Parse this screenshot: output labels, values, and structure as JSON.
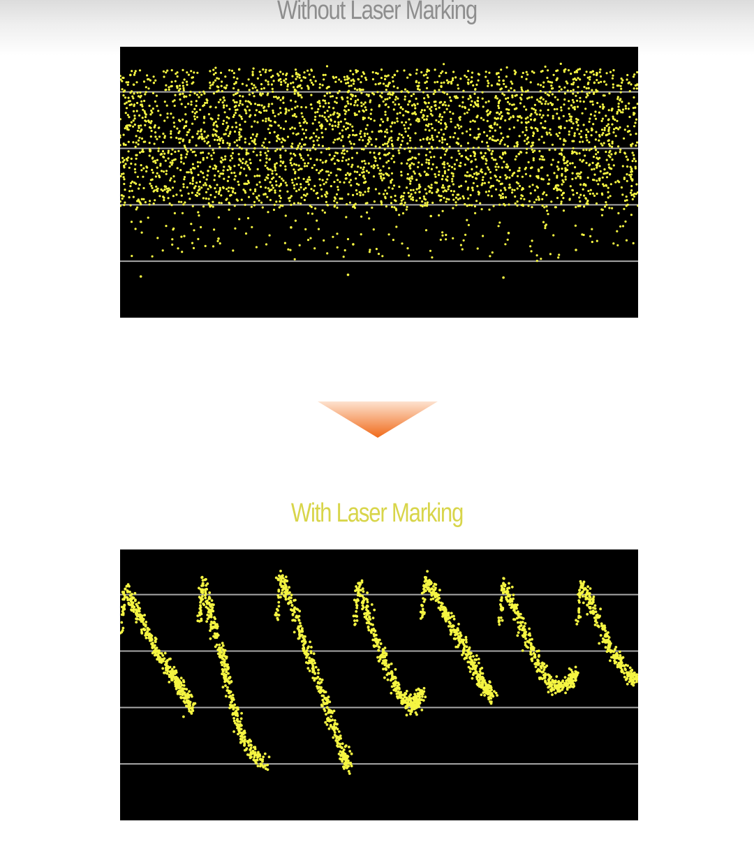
{
  "titles": {
    "top": "Without Laser Marking",
    "bottom": "With Laser Marking"
  },
  "colors": {
    "top_title": "#8e8e8e",
    "bottom_title": "#d8d54a",
    "panel_background": "#000000",
    "points": "#f5f542",
    "gridline": "#a9a9a9",
    "arrow_top": "#fde2cf",
    "arrow_bottom": "#f06a1a"
  },
  "icons": {
    "arrow": "down-triangle-icon"
  },
  "chart_data": [
    {
      "type": "scatter",
      "title": "Without Laser Marking",
      "xlabel": "",
      "ylabel": "",
      "grid": true,
      "gridlines_y": [
        1,
        2,
        3,
        4
      ],
      "xlim": [
        0,
        100
      ],
      "ylim": [
        0,
        4.8
      ],
      "distribution": "dense scattered points spread uniformly across the full width, concentrated between y=1.9 and y=4.4 with sparse outliers down to y=0.7",
      "series": [
        {
          "values": [
            [
              2,
              4.3
            ],
            [
              5,
              3.6
            ],
            [
              8,
              2.9
            ],
            [
              11,
              4.1
            ],
            [
              14,
              3.2
            ],
            [
              17,
              2.6
            ],
            [
              20,
              3.9
            ],
            [
              23,
              4.4
            ],
            [
              26,
              3.0
            ],
            [
              29,
              2.4
            ],
            [
              32,
              3.7
            ],
            [
              35,
              4.2
            ],
            [
              38,
              2.8
            ],
            [
              41,
              3.4
            ],
            [
              44,
              4.0
            ],
            [
              47,
              2.5
            ],
            [
              50,
              3.3
            ],
            [
              53,
              4.3
            ],
            [
              56,
              2.7
            ],
            [
              59,
              3.8
            ],
            [
              62,
              4.1
            ],
            [
              65,
              3.1
            ],
            [
              68,
              2.3
            ],
            [
              71,
              3.6
            ],
            [
              74,
              4.2
            ],
            [
              77,
              2.9
            ],
            [
              80,
              3.5
            ],
            [
              83,
              4.0
            ],
            [
              86,
              2.6
            ],
            [
              89,
              3.2
            ],
            [
              92,
              4.3
            ],
            [
              95,
              3.7
            ],
            [
              98,
              2.8
            ],
            [
              4,
              1.7
            ],
            [
              19,
              1.4
            ],
            [
              33,
              1.6
            ],
            [
              45,
              1.3
            ],
            [
              60,
              1.8
            ],
            [
              75,
              1.5
            ],
            [
              88,
              1.2
            ],
            [
              4,
              0.73
            ],
            [
              44,
              0.76
            ],
            [
              74,
              0.71
            ]
          ]
        }
      ]
    },
    {
      "type": "scatter",
      "title": "With Laser Marking",
      "xlabel": "",
      "ylabel": "",
      "grid": true,
      "gridlines_y": [
        1,
        2,
        3,
        4
      ],
      "xlim": [
        0,
        100
      ],
      "ylim": [
        0,
        4.8
      ],
      "distribution": "points form seven repeating sawtooth segments: a sharp peak near y=4.2 followed by a downward sweep",
      "series": [
        {
          "values": [
            [
              1,
              4.1
            ],
            [
              4,
              3.6
            ],
            [
              7,
              3.0
            ],
            [
              10,
              2.6
            ],
            [
              12,
              2.3
            ],
            [
              14,
              2.0
            ],
            [
              16,
              4.2
            ],
            [
              18,
              3.5
            ],
            [
              20,
              2.8
            ],
            [
              22,
              2.0
            ],
            [
              24,
              1.4
            ],
            [
              28,
              0.97
            ],
            [
              31,
              4.3
            ],
            [
              34,
              3.6
            ],
            [
              37,
              2.8
            ],
            [
              40,
              2.0
            ],
            [
              43,
              1.2
            ],
            [
              44,
              0.96
            ],
            [
              46,
              4.2
            ],
            [
              49,
              3.3
            ],
            [
              52,
              2.6
            ],
            [
              55,
              2.1
            ],
            [
              57,
              2.0
            ],
            [
              58,
              2.3
            ],
            [
              59,
              4.3
            ],
            [
              62,
              3.8
            ],
            [
              65,
              3.3
            ],
            [
              68,
              2.8
            ],
            [
              70,
              2.4
            ],
            [
              72,
              2.2
            ],
            [
              74,
              4.2
            ],
            [
              77,
              3.6
            ],
            [
              80,
              2.9
            ],
            [
              83,
              2.4
            ],
            [
              86,
              2.4
            ],
            [
              88,
              2.6
            ],
            [
              89,
              4.2
            ],
            [
              92,
              3.6
            ],
            [
              95,
              3.0
            ],
            [
              98,
              2.6
            ],
            [
              100,
              2.5
            ]
          ]
        }
      ]
    }
  ]
}
